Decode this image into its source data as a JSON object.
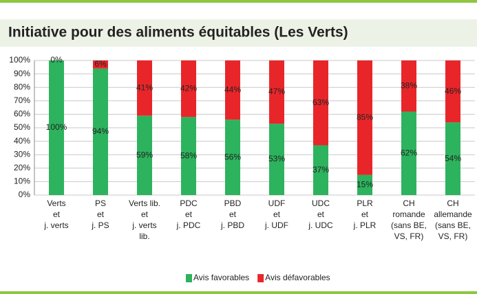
{
  "chart_data": {
    "type": "stacked-bar",
    "title": "Initiative pour des aliments équitables (Les Verts)",
    "categories": [
      [
        "Verts",
        "et",
        "j. verts"
      ],
      [
        "PS",
        "et",
        "j. PS"
      ],
      [
        "Verts lib.",
        "et",
        "j. verts",
        "lib."
      ],
      [
        "PDC",
        "et",
        "j. PDC"
      ],
      [
        "PBD",
        "et",
        "j. PBD"
      ],
      [
        "UDF",
        "et",
        "j. UDF"
      ],
      [
        "UDC",
        "et",
        "j. UDC"
      ],
      [
        "PLR",
        "et",
        "j. PLR"
      ],
      [
        "CH",
        "romande",
        "(sans BE,",
        "VS, FR)"
      ],
      [
        "CH",
        "allemande",
        "(sans BE,",
        "VS, FR)"
      ]
    ],
    "series": [
      {
        "name": "Avis favorables",
        "color": "#2db35d",
        "values": [
          100,
          94,
          59,
          58,
          56,
          53,
          37,
          15,
          62,
          54
        ],
        "value_labels": [
          "100%",
          "94%",
          "59%",
          "58%",
          "56%",
          "53%",
          "37%",
          "15%",
          "62%",
          "54%"
        ]
      },
      {
        "name": "Avis défavorables",
        "color": "#e8262a",
        "values": [
          0,
          6,
          41,
          42,
          44,
          47,
          63,
          85,
          38,
          46
        ],
        "value_labels": [
          "0%",
          "6%",
          "41%",
          "42%",
          "44%",
          "47%",
          "63%",
          "85%",
          "38%",
          "46%"
        ]
      }
    ],
    "ylim": [
      0,
      100
    ],
    "yticks": [
      {
        "value": 0,
        "label": "0%"
      },
      {
        "value": 10,
        "label": "10%"
      },
      {
        "value": 20,
        "label": "20%"
      },
      {
        "value": 30,
        "label": "30%"
      },
      {
        "value": 40,
        "label": "40%"
      },
      {
        "value": 50,
        "label": "50%"
      },
      {
        "value": 60,
        "label": "60%"
      },
      {
        "value": 70,
        "label": "70%"
      },
      {
        "value": 80,
        "label": "80%"
      },
      {
        "value": 90,
        "label": "90%"
      },
      {
        "value": 100,
        "label": "100%"
      }
    ],
    "grid": true,
    "legend": "bottom"
  }
}
